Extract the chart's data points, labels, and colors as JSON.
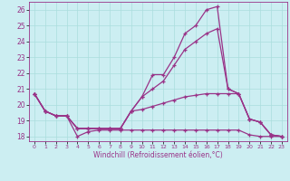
{
  "xlabel": "Windchill (Refroidissement éolien,°C)",
  "bg_color": "#cceef2",
  "grid_color": "#aadddd",
  "line_color": "#993388",
  "xlim": [
    -0.5,
    23.5
  ],
  "ylim": [
    17.7,
    26.5
  ],
  "yticks": [
    18,
    19,
    20,
    21,
    22,
    23,
    24,
    25,
    26
  ],
  "xticks": [
    0,
    1,
    2,
    3,
    4,
    5,
    6,
    7,
    8,
    9,
    10,
    11,
    12,
    13,
    14,
    15,
    16,
    17,
    18,
    19,
    20,
    21,
    22,
    23
  ],
  "lines": [
    [
      0,
      20.7,
      1,
      19.6,
      2,
      19.3,
      3,
      19.3,
      4,
      18.5,
      5,
      18.5,
      6,
      18.5,
      7,
      18.5,
      8,
      18.5,
      9,
      19.6,
      10,
      20.5,
      11,
      21.9,
      12,
      21.9,
      13,
      23.0,
      14,
      24.5,
      15,
      25.0,
      16,
      26.0,
      17,
      26.2,
      18,
      21.0,
      19,
      20.7,
      20,
      19.1,
      21,
      18.9,
      22,
      18.1,
      23,
      18.0
    ],
    [
      0,
      20.7,
      1,
      19.6,
      2,
      19.3,
      3,
      19.3,
      4,
      18.0,
      5,
      18.3,
      6,
      18.4,
      7,
      18.4,
      8,
      18.4,
      9,
      18.4,
      10,
      18.4,
      11,
      18.4,
      12,
      18.4,
      13,
      18.4,
      14,
      18.4,
      15,
      18.4,
      16,
      18.4,
      17,
      18.4,
      18,
      18.4,
      19,
      18.4,
      20,
      18.1,
      21,
      18.0,
      22,
      18.0,
      23,
      18.0
    ],
    [
      0,
      20.7,
      1,
      19.6,
      2,
      19.3,
      3,
      19.3,
      4,
      18.5,
      5,
      18.5,
      6,
      18.5,
      7,
      18.5,
      8,
      18.5,
      9,
      19.6,
      10,
      19.7,
      11,
      19.9,
      12,
      20.1,
      13,
      20.3,
      14,
      20.5,
      15,
      20.6,
      16,
      20.7,
      17,
      20.7,
      18,
      20.7,
      19,
      20.7,
      20,
      19.1,
      21,
      18.9,
      22,
      18.1,
      23,
      18.0
    ],
    [
      0,
      20.7,
      1,
      19.6,
      2,
      19.3,
      3,
      19.3,
      4,
      18.5,
      5,
      18.5,
      6,
      18.5,
      7,
      18.5,
      8,
      18.5,
      9,
      19.6,
      10,
      20.5,
      11,
      21.0,
      12,
      21.5,
      13,
      22.5,
      14,
      23.5,
      15,
      24.0,
      16,
      24.5,
      17,
      24.8,
      18,
      21.0,
      19,
      20.7,
      20,
      19.1,
      21,
      18.9,
      22,
      18.1,
      23,
      18.0
    ]
  ]
}
